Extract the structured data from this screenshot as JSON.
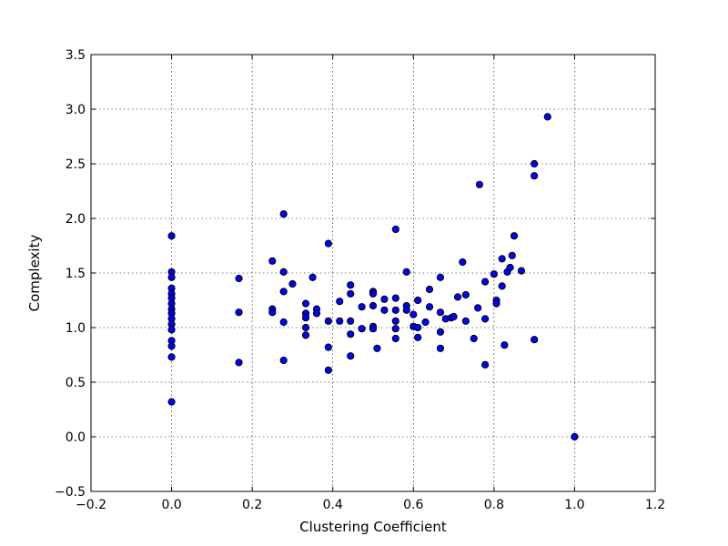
{
  "chart_data": {
    "type": "scatter",
    "title": "",
    "xlabel": "Clustering Coefficient",
    "ylabel": "Complexity",
    "xlim": [
      -0.2,
      1.2
    ],
    "ylim": [
      -0.5,
      3.5
    ],
    "xticks": [
      -0.2,
      0.0,
      0.2,
      0.4,
      0.6,
      0.8,
      1.0,
      1.2
    ],
    "yticks": [
      -0.5,
      0.0,
      0.5,
      1.0,
      1.5,
      2.0,
      2.5,
      3.0,
      3.5
    ],
    "xtick_labels": [
      "−0.2",
      "0.0",
      "0.2",
      "0.4",
      "0.6",
      "0.8",
      "1.0",
      "1.2"
    ],
    "ytick_labels": [
      "−0.5",
      "0.0",
      "0.5",
      "1.0",
      "1.5",
      "2.0",
      "2.5",
      "3.0",
      "3.5"
    ],
    "grid": true,
    "marker_color": "#0000ff",
    "marker_edge_color": "#000000",
    "points": [
      [
        0.0,
        1.84
      ],
      [
        0.0,
        1.51
      ],
      [
        0.0,
        1.46
      ],
      [
        0.0,
        1.36
      ],
      [
        0.0,
        1.31
      ],
      [
        0.0,
        1.27
      ],
      [
        0.0,
        1.22
      ],
      [
        0.0,
        1.17
      ],
      [
        0.0,
        1.13
      ],
      [
        0.0,
        1.08
      ],
      [
        0.0,
        1.03
      ],
      [
        0.0,
        0.98
      ],
      [
        0.0,
        0.88
      ],
      [
        0.0,
        0.83
      ],
      [
        0.0,
        0.73
      ],
      [
        0.0,
        0.32
      ],
      [
        0.167,
        1.45
      ],
      [
        0.167,
        1.14
      ],
      [
        0.167,
        0.68
      ],
      [
        0.25,
        1.61
      ],
      [
        0.25,
        1.17
      ],
      [
        0.25,
        1.14
      ],
      [
        0.278,
        2.04
      ],
      [
        0.278,
        1.51
      ],
      [
        0.278,
        1.33
      ],
      [
        0.278,
        1.05
      ],
      [
        0.278,
        0.7
      ],
      [
        0.3,
        1.4
      ],
      [
        0.333,
        1.22
      ],
      [
        0.333,
        1.13
      ],
      [
        0.333,
        1.09
      ],
      [
        0.333,
        1.0
      ],
      [
        0.333,
        0.93
      ],
      [
        0.35,
        1.46
      ],
      [
        0.36,
        1.17
      ],
      [
        0.36,
        1.13
      ],
      [
        0.389,
        1.77
      ],
      [
        0.389,
        1.06
      ],
      [
        0.389,
        0.82
      ],
      [
        0.389,
        0.61
      ],
      [
        0.417,
        1.24
      ],
      [
        0.417,
        1.06
      ],
      [
        0.444,
        1.39
      ],
      [
        0.444,
        1.31
      ],
      [
        0.444,
        1.06
      ],
      [
        0.444,
        0.94
      ],
      [
        0.444,
        0.74
      ],
      [
        0.472,
        1.19
      ],
      [
        0.472,
        0.99
      ],
      [
        0.5,
        1.33
      ],
      [
        0.5,
        1.31
      ],
      [
        0.5,
        1.2
      ],
      [
        0.5,
        1.01
      ],
      [
        0.5,
        0.99
      ],
      [
        0.51,
        0.81
      ],
      [
        0.528,
        1.26
      ],
      [
        0.528,
        1.16
      ],
      [
        0.556,
        1.9
      ],
      [
        0.556,
        1.27
      ],
      [
        0.556,
        1.16
      ],
      [
        0.556,
        1.06
      ],
      [
        0.556,
        0.99
      ],
      [
        0.556,
        0.9
      ],
      [
        0.583,
        1.51
      ],
      [
        0.583,
        1.2
      ],
      [
        0.583,
        1.16
      ],
      [
        0.6,
        1.12
      ],
      [
        0.6,
        1.01
      ],
      [
        0.611,
        1.25
      ],
      [
        0.611,
        1.0
      ],
      [
        0.611,
        0.91
      ],
      [
        0.63,
        1.05
      ],
      [
        0.64,
        1.35
      ],
      [
        0.64,
        1.19
      ],
      [
        0.667,
        1.46
      ],
      [
        0.667,
        1.14
      ],
      [
        0.667,
        0.96
      ],
      [
        0.667,
        0.81
      ],
      [
        0.68,
        1.08
      ],
      [
        0.694,
        1.09
      ],
      [
        0.7,
        1.1
      ],
      [
        0.71,
        1.28
      ],
      [
        0.722,
        1.6
      ],
      [
        0.73,
        1.3
      ],
      [
        0.73,
        1.06
      ],
      [
        0.75,
        0.9
      ],
      [
        0.76,
        1.18
      ],
      [
        0.764,
        2.31
      ],
      [
        0.778,
        1.42
      ],
      [
        0.778,
        1.08
      ],
      [
        0.778,
        0.66
      ],
      [
        0.8,
        1.49
      ],
      [
        0.806,
        1.25
      ],
      [
        0.806,
        1.22
      ],
      [
        0.82,
        1.63
      ],
      [
        0.82,
        1.38
      ],
      [
        0.826,
        0.84
      ],
      [
        0.833,
        1.51
      ],
      [
        0.84,
        1.55
      ],
      [
        0.845,
        1.66
      ],
      [
        0.85,
        1.84
      ],
      [
        0.868,
        1.52
      ],
      [
        0.9,
        2.5
      ],
      [
        0.9,
        2.39
      ],
      [
        0.9,
        0.89
      ],
      [
        0.933,
        2.93
      ],
      [
        1.0,
        0.0
      ]
    ]
  }
}
